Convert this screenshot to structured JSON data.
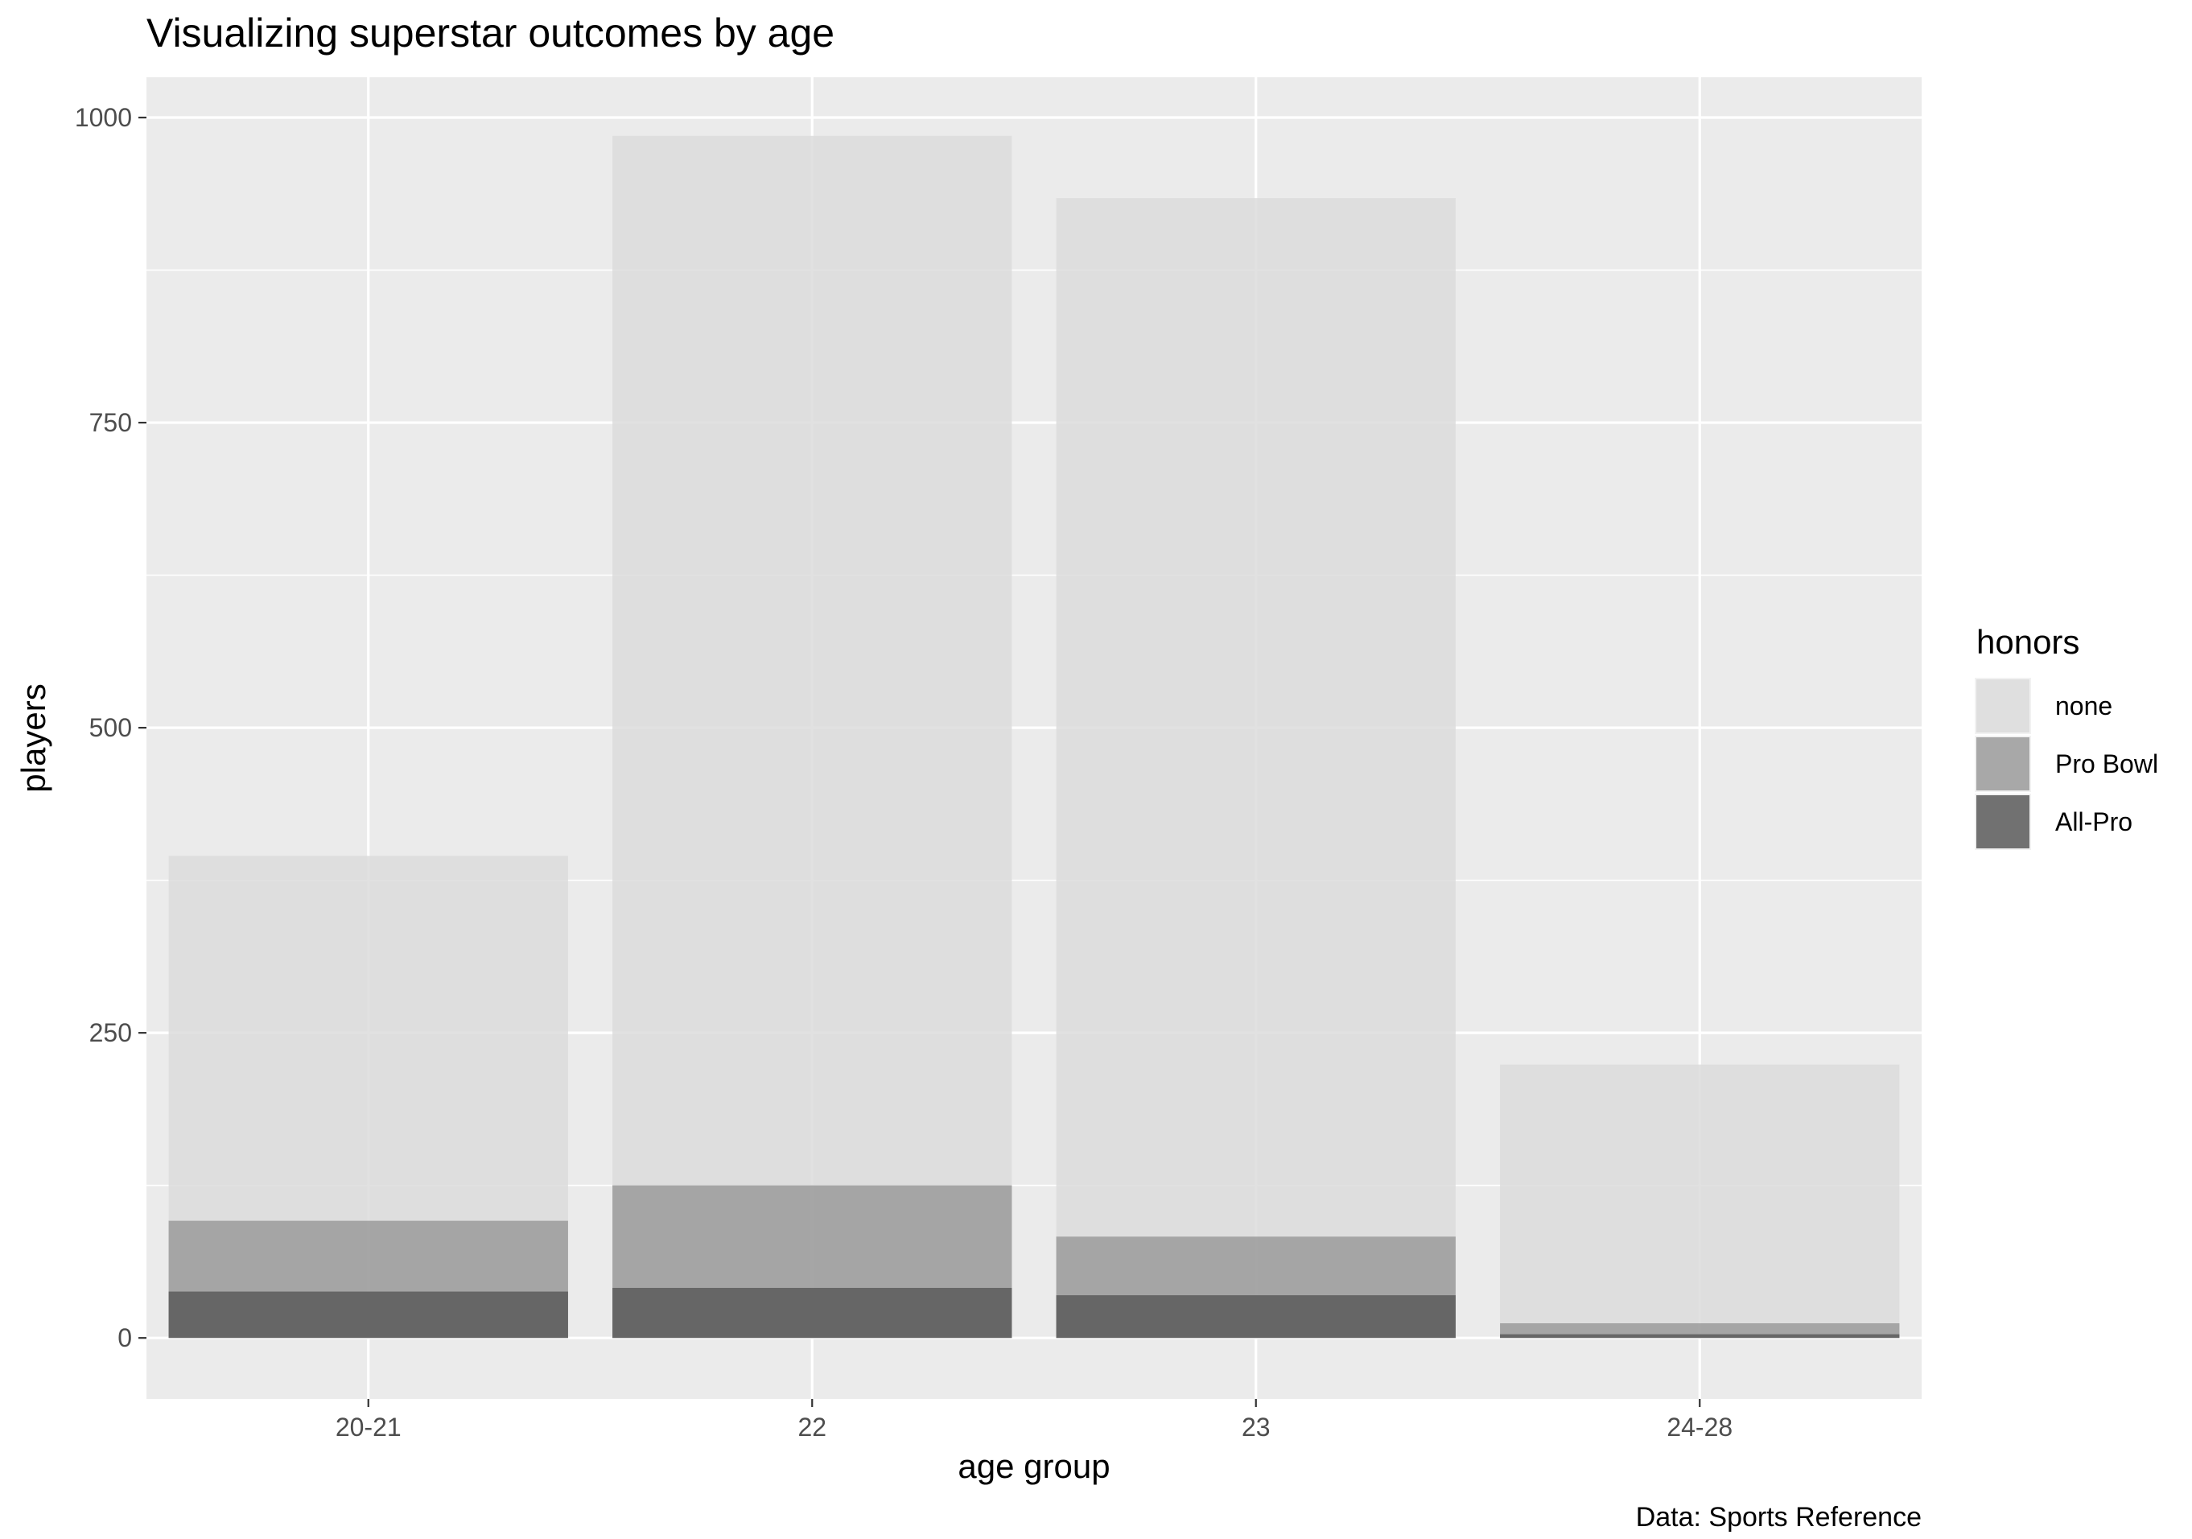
{
  "chart_data": {
    "type": "bar",
    "title": "Visualizing superstar outcomes by age",
    "xlabel": "age group",
    "ylabel": "players",
    "caption": "Data: Sports Reference",
    "categories": [
      "20-21",
      "22",
      "23",
      "24-28"
    ],
    "overlapping_bars": true,
    "series": [
      {
        "name": "none",
        "color": "#dcdcdc",
        "values": [
          395,
          985,
          934,
          224
        ]
      },
      {
        "name": "Pro Bowl",
        "color": "#9b9b9b",
        "values": [
          96,
          125,
          83,
          12
        ]
      },
      {
        "name": "All-Pro",
        "color": "#5b5b5b",
        "values": [
          38,
          41,
          35,
          3
        ]
      }
    ],
    "y_ticks": [
      0,
      250,
      500,
      750,
      1000
    ],
    "ylim": [
      -50,
      1033
    ],
    "grid": true,
    "panel_background": "#ebebeb",
    "legend": {
      "title": "honors",
      "position": "right",
      "entries": [
        "none",
        "Pro Bowl",
        "All-Pro"
      ]
    }
  }
}
